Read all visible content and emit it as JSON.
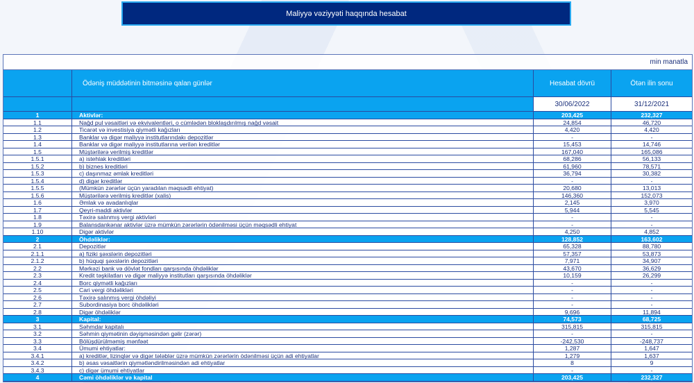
{
  "title": "Maliyyə vəziyyəti haqqında hesabat",
  "unit": "min manatla",
  "header": {
    "label": "Ödəniş müddətinin bitməsinə qalan günlər",
    "col1": "Hesabat dövrü",
    "col2": "Ötən ilin sonu",
    "date1": "30/06/2022",
    "date2": "31/12/2021"
  },
  "colors": {
    "title_bg": "#00287f",
    "accent": "#0aa3f0",
    "text": "#1a2f7a"
  },
  "rows": [
    {
      "no": "1",
      "name": "Aktivlər:",
      "v1": "203,425",
      "v2": "232,327",
      "hl": true
    },
    {
      "no": "1.1",
      "name": "Nağd pul vəsaitləri və  ekvivalentləri, o cümlədən bloklaşdırılmış nağd vəsait",
      "v1": "24,854",
      "v2": "46,720"
    },
    {
      "no": "1.2",
      "name": "Ticarət və investisiya qiymətli kağızları",
      "v1": "4,420",
      "v2": "4,420"
    },
    {
      "no": "1.3",
      "name": "Banklar və digər maliyyə institutlarındakı depozitlər",
      "v1": "-",
      "v2": "-"
    },
    {
      "no": "1.4",
      "name": "Banklar və digər maliyyə institutlarına verilən kreditlər",
      "v1": "15,453",
      "v2": "14,746"
    },
    {
      "no": "1.5",
      "name": "Müştərilərə verilmiş kreditlər",
      "v1": "167,040",
      "v2": "165,086"
    },
    {
      "no": "1.5.1",
      "name": "a) istehlak kreditləri",
      "v1": "68,286",
      "v2": "56,133"
    },
    {
      "no": "1.5.2",
      "name": "b) biznes kreditləri",
      "v1": "61,960",
      "v2": "78,571"
    },
    {
      "no": "1.5.3",
      "name": "c) daşınmaz əmlak kreditləri",
      "v1": "36,794",
      "v2": "30,382"
    },
    {
      "no": "1.5.4",
      "name": "d) digər kreditlər",
      "v1": "-",
      "v2": "-"
    },
    {
      "no": "1.5.5",
      "name": "(Mümkün zərərlər üçün yaradılan məqsədli ehtiyat)",
      "v1": "20,680",
      "v2": "13,013"
    },
    {
      "no": "1.5.6",
      "name": "Müştərilərə verilmiş kreditlər (xalis)",
      "v1": "146,360",
      "v2": "152,073"
    },
    {
      "no": "1.6",
      "name": "Əmlak və avadanlıqlar",
      "v1": "2,145",
      "v2": "3,970"
    },
    {
      "no": "1.7",
      "name": "Qeyri-maddi aktivlər",
      "v1": "5,944",
      "v2": "5,545"
    },
    {
      "no": "1.8",
      "name": "Təxirə salınmış vergi aktivləri",
      "v1": "-",
      "v2": "-"
    },
    {
      "no": "1.9",
      "name": "Balansdankənar aktivlər üzrə mümkün zərərlərin ödənilməsi üçün məqsədli ehtiyat",
      "v1": "-",
      "v2": "-"
    },
    {
      "no": "1.10",
      "name": "Digər aktivlər",
      "v1": "4,250",
      "v2": "4,852"
    },
    {
      "no": "2",
      "name": "Öhdəliklər:",
      "v1": "128,852",
      "v2": "163,602",
      "hl": true
    },
    {
      "no": "2.1",
      "name": "Depozitlər",
      "v1": "65,328",
      "v2": "88,780"
    },
    {
      "no": "2.1.1",
      "name": "a) fiziki şəxslərin depozitləri",
      "v1": "57,357",
      "v2": "53,873"
    },
    {
      "no": "2.1.2",
      "name": "b) hüquqi şəxslərin depozitləri",
      "v1": "7,971",
      "v2": "34,907"
    },
    {
      "no": "2.2",
      "name": "Mərkəzi bank və dövlət fondları qarşısında öhdəliklər",
      "v1": "43,670",
      "v2": "36,629"
    },
    {
      "no": "2.3",
      "name": "Kredit təşkilatları və digər maliyyə institutları qarşısında öhdəliklər",
      "v1": "10,159",
      "v2": "26,299"
    },
    {
      "no": "2.4",
      "name": "Borc qiymətli kağızları",
      "v1": "-",
      "v2": "-"
    },
    {
      "no": "2.5",
      "name": "Cari vergi öhdəlikləri",
      "v1": "-",
      "v2": "-"
    },
    {
      "no": "2.6",
      "name": "Təxirə salınmış vergi öhdəliyi",
      "v1": "-",
      "v2": "-"
    },
    {
      "no": "2.7",
      "name": "Subordinasiya borc öhdəlikləri",
      "v1": "-",
      "v2": "-"
    },
    {
      "no": "2.8",
      "name": "Digər öhdəliklər",
      "v1": "9,696",
      "v2": "11,894"
    },
    {
      "no": "3",
      "name": "Kapital:",
      "v1": "74,573",
      "v2": "68,725",
      "hl": true
    },
    {
      "no": "3.1",
      "name": "Səhmdar kapitalı",
      "v1": "315,815",
      "v2": "315,815"
    },
    {
      "no": "3.2",
      "name": "Səhmin qiymətinin dəyişməsindən gəlir (zərər)",
      "v1": "-",
      "v2": "-"
    },
    {
      "no": "3.3",
      "name": "Bölüşdürülməmiş mənfəət",
      "v1": "-242,530",
      "v2": "-248,737"
    },
    {
      "no": "3.4",
      "name": "Ümumi ehtiyatlar:",
      "v1": "1,287",
      "v2": "1,647"
    },
    {
      "no": "3.4.1",
      "name": "a) kreditlər, lizinqlər və digər tələblər üzrə mümkün zərərlərin ödənilməsi üçün adi ehtiyatlar",
      "v1": "1,279",
      "v2": "1,637"
    },
    {
      "no": "3.4.2",
      "name": "b) əsas vəsaitlərin qiymətləndirilməsindən adi ehtiyatlar",
      "v1": "8",
      "v2": "9"
    },
    {
      "no": "3.4.3",
      "name": "c) digər ümumi ehtiyatlar",
      "v1": "-",
      "v2": "-"
    },
    {
      "no": "4",
      "name": "Cəmi öhdəliklər və kapital",
      "v1": "203,425",
      "v2": "232,327",
      "hl": true
    }
  ]
}
